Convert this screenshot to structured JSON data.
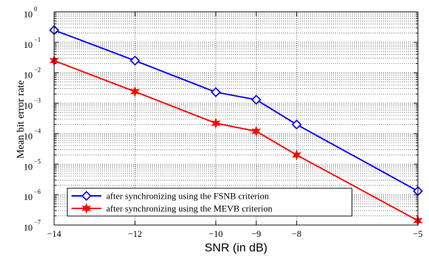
{
  "chart_data": {
    "type": "line",
    "title": "",
    "xlabel": "SNR (in dB)",
    "ylabel": "Mean bit error rate",
    "xlim": [
      -14,
      -5
    ],
    "ylim": [
      1e-07,
      1
    ],
    "y_scale": "log",
    "grid": true,
    "legend_position": "bottom-left",
    "x_ticks": [
      {
        "value": -14,
        "label": "−14"
      },
      {
        "value": -12,
        "label": "−12"
      },
      {
        "value": -10,
        "label": "−10"
      },
      {
        "value": -9,
        "label": "−9"
      },
      {
        "value": -8,
        "label": "−8"
      },
      {
        "value": -5,
        "label": "−5"
      }
    ],
    "y_ticks": [
      {
        "value": 1e-07,
        "base": "10",
        "exp": "−7"
      },
      {
        "value": 1e-06,
        "base": "10",
        "exp": "−6"
      },
      {
        "value": 1e-05,
        "base": "10",
        "exp": "−5"
      },
      {
        "value": 0.0001,
        "base": "10",
        "exp": "−4"
      },
      {
        "value": 0.001,
        "base": "10",
        "exp": "−3"
      },
      {
        "value": 0.01,
        "base": "10",
        "exp": "−2"
      },
      {
        "value": 0.1,
        "base": "10",
        "exp": "−1"
      },
      {
        "value": 1,
        "base": "10",
        "exp": "0"
      }
    ],
    "series": [
      {
        "name": "after synchronizing using the FSNB criterion",
        "color": "#0000ff",
        "marker": "diamond",
        "x": [
          -14,
          -12,
          -10,
          -9,
          -8,
          -5
        ],
        "y": [
          0.25,
          0.025,
          0.0023,
          0.0013,
          0.0002,
          1.3e-06
        ]
      },
      {
        "name": "after synchronizing using the MEVB criterion",
        "color": "#ff0000",
        "marker": "hexagram",
        "x": [
          -14,
          -12,
          -10,
          -9,
          -8,
          -5
        ],
        "y": [
          0.025,
          0.0024,
          0.00022,
          0.00012,
          2e-05,
          1.4e-07
        ]
      }
    ]
  }
}
